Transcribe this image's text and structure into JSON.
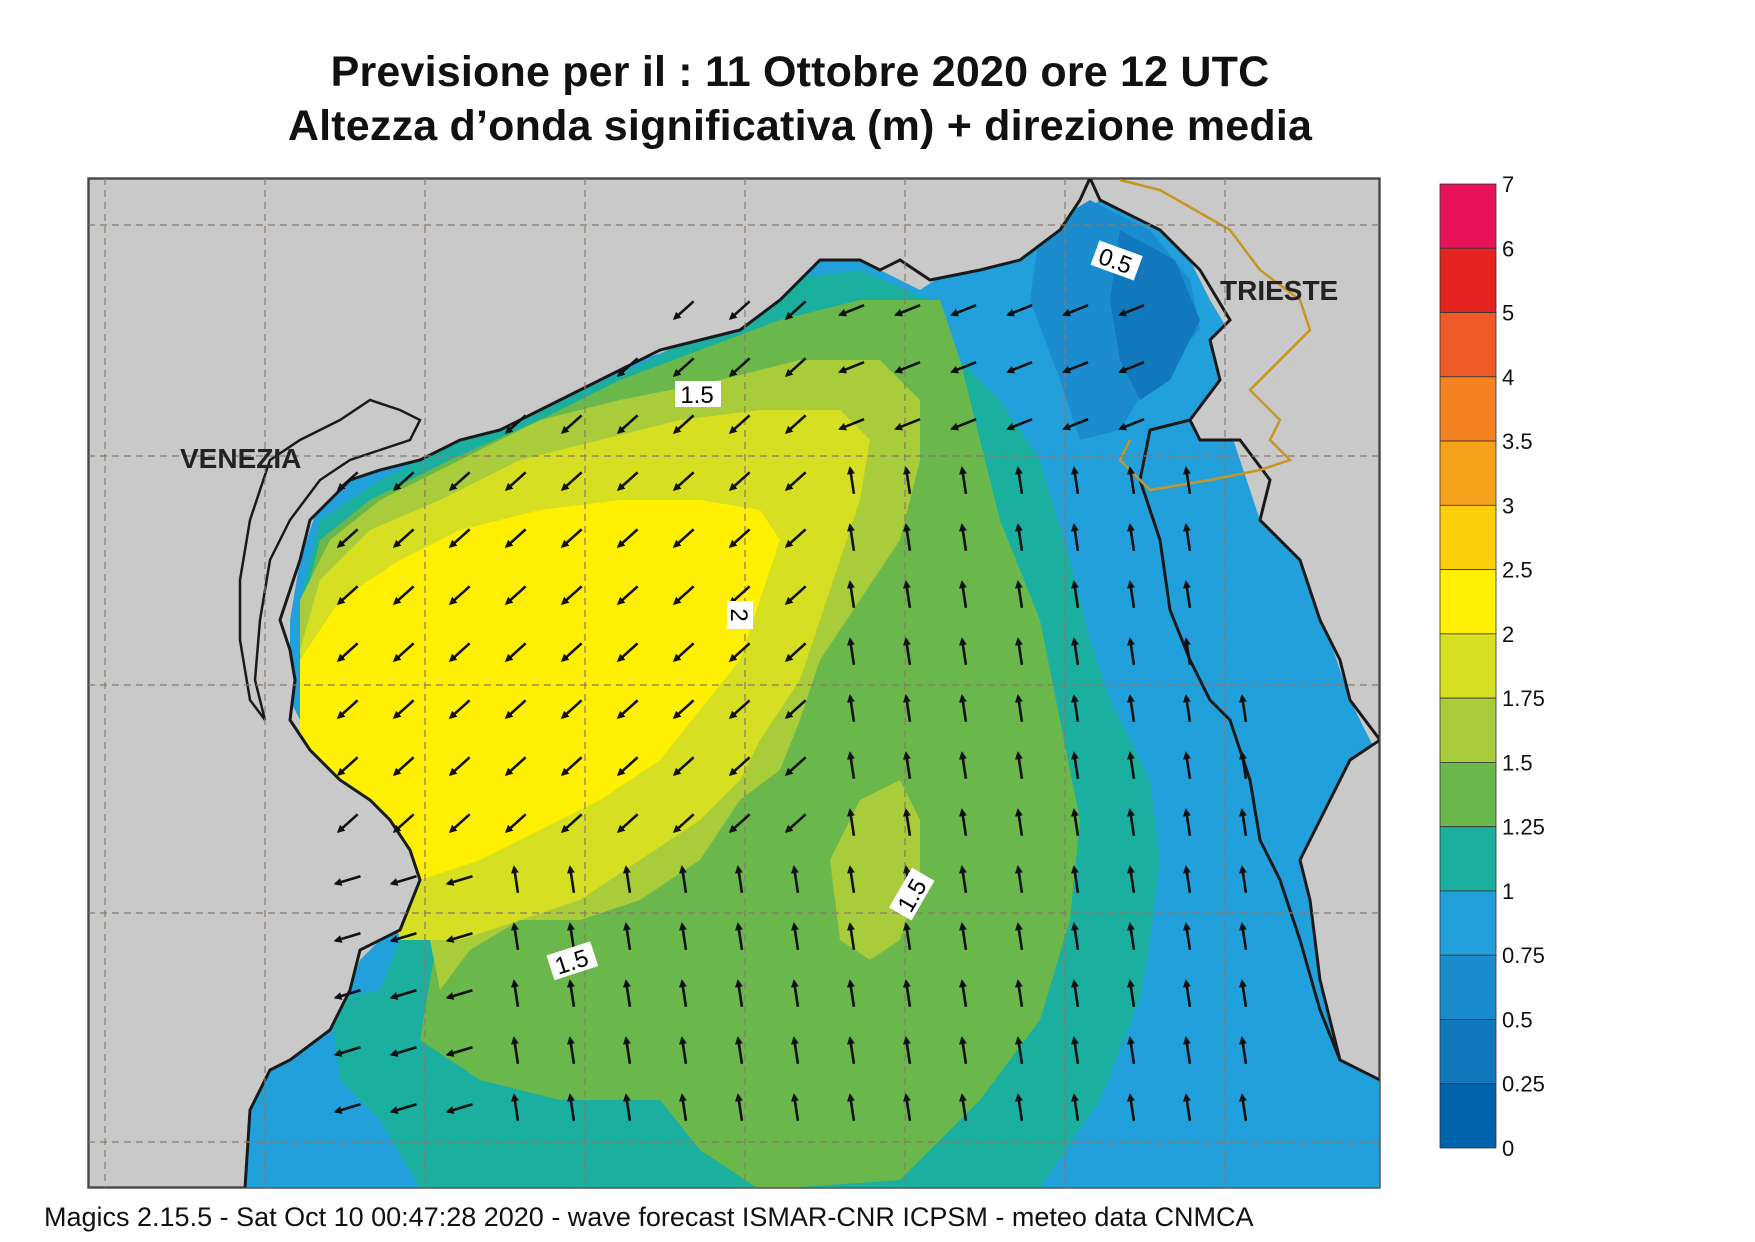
{
  "header": {
    "line1": "Previsione per il  :  11  Ottobre  2020   ore 12 UTC",
    "line2": "Altezza d’onda significativa (m) + direzione media"
  },
  "map_labels": {
    "city_west": "VENEZIA",
    "city_east": "TRIESTE"
  },
  "contour_labels": [
    "0.5",
    "1.5",
    "2",
    "1.5",
    "1.5"
  ],
  "colorbar": {
    "levels": [
      "7",
      "6",
      "5",
      "4",
      "3.5",
      "3",
      "2.5",
      "2",
      "1.75",
      "1.5",
      "1.25",
      "1",
      "0.75",
      "0.5",
      "0.25",
      "0"
    ],
    "colors": [
      "#e8125a",
      "#e52421",
      "#f05a28",
      "#f58220",
      "#f7a21b",
      "#fccf0a",
      "#ffef00",
      "#d6df22",
      "#a8cc3a",
      "#6ab74b",
      "#1aaf9f",
      "#21a0db",
      "#1b8dce",
      "#1278be",
      "#0064ad"
    ]
  },
  "colors": {
    "land": "#c9c9c9",
    "coast": "#1a1a1a",
    "border": "#c8961e",
    "grid": "#8a7a6a",
    "arrow": "#111111"
  },
  "footer": "Magics 2.15.5 - Sat Oct 10 00:47:28 2020 - wave forecast  ISMAR-CNR  ICPSM - meteo data   CNMCA"
}
